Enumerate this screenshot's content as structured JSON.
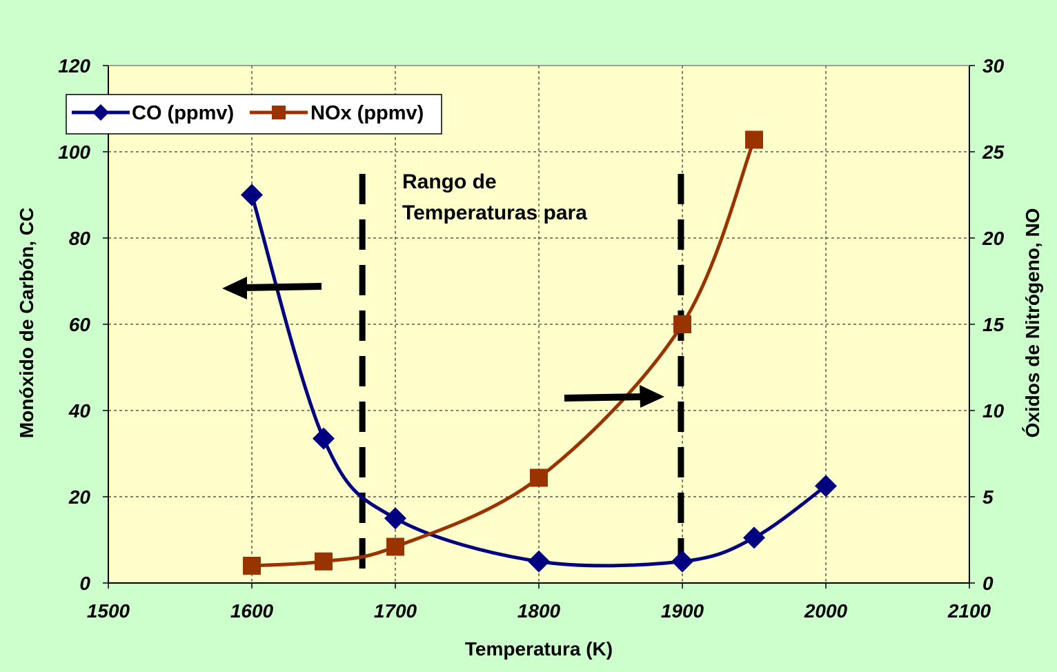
{
  "chart_data": {
    "type": "line",
    "title": "",
    "xlabel": "Temperatura (K)",
    "ylabel": "Monóxido de Carbón, CC",
    "y2label": "Óxidos de Nitrógeno, NO",
    "xlim": [
      1500,
      2100
    ],
    "ylim": [
      0,
      120
    ],
    "y2lim": [
      0,
      30
    ],
    "x_ticks": [
      "1500",
      "1600",
      "1700",
      "1800",
      "1900",
      "2000",
      "2100"
    ],
    "y_ticks": [
      "0",
      "20",
      "40",
      "60",
      "80",
      "100",
      "120"
    ],
    "y2_ticks": [
      "0",
      "5",
      "10",
      "15",
      "20",
      "25",
      "30"
    ],
    "grid": true,
    "legend_position": "top-left",
    "plot_background": "#ffffcc",
    "series": [
      {
        "name": "CO (ppmv)",
        "axis": "left",
        "color": "#000080",
        "marker": "diamond",
        "x": [
          1600,
          1650,
          1700,
          1800,
          1900,
          1950,
          2000
        ],
        "values": [
          90,
          33.5,
          15,
          5,
          5,
          10.5,
          22.5
        ]
      },
      {
        "name": "NOx (ppmv)",
        "axis": "right",
        "color": "#993300",
        "marker": "square",
        "x": [
          1600,
          1650,
          1700,
          1800,
          1900,
          1950
        ],
        "values": [
          1,
          1.25,
          2.1,
          6.1,
          15,
          25.7
        ]
      }
    ],
    "annotations": {
      "range_text_line1": "Rango de",
      "range_text_line2": "Temperaturas para",
      "range_lines_x": [
        1677,
        1899
      ],
      "left_arrow_label": "",
      "right_arrow_label": ""
    }
  }
}
